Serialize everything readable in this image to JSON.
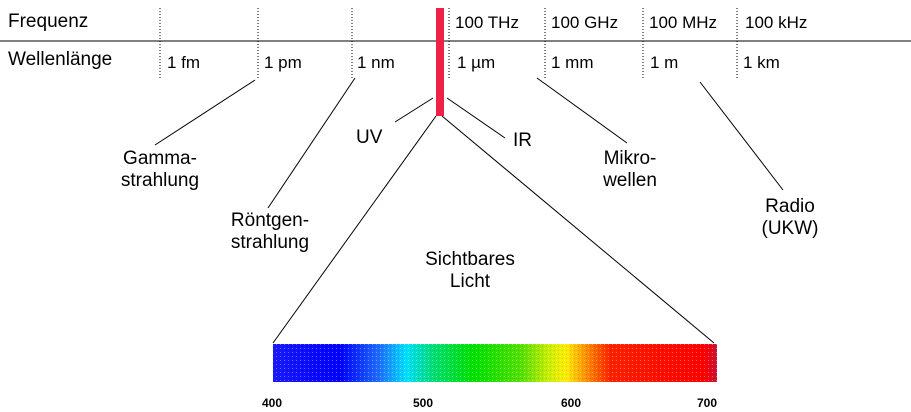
{
  "rows": {
    "frequency_label": "Frequenz",
    "wavelength_label": "Wellenlänge"
  },
  "frequency_ticks": [
    "100 THz",
    "100 GHz",
    "100 MHz",
    "100 kHz"
  ],
  "wavelength_ticks": [
    "1 fm",
    "1 pm",
    "1 nm",
    "1 µm",
    "1 mm",
    "1 m",
    "1 km"
  ],
  "regions": {
    "gamma": [
      "Gamma-",
      "strahlung"
    ],
    "xray": [
      "Röntgen-",
      "strahlung"
    ],
    "uv": "UV",
    "ir": "IR",
    "micro": [
      "Mikro-",
      "wellen"
    ],
    "radio": [
      "Radio",
      "(UKW)"
    ],
    "visible": [
      "Sichtbares",
      "Licht"
    ]
  },
  "spectrum_axis": [
    "400",
    "500",
    "600",
    "700"
  ],
  "colors": {
    "visible_band": "#ee2244",
    "lines": "#000000"
  }
}
